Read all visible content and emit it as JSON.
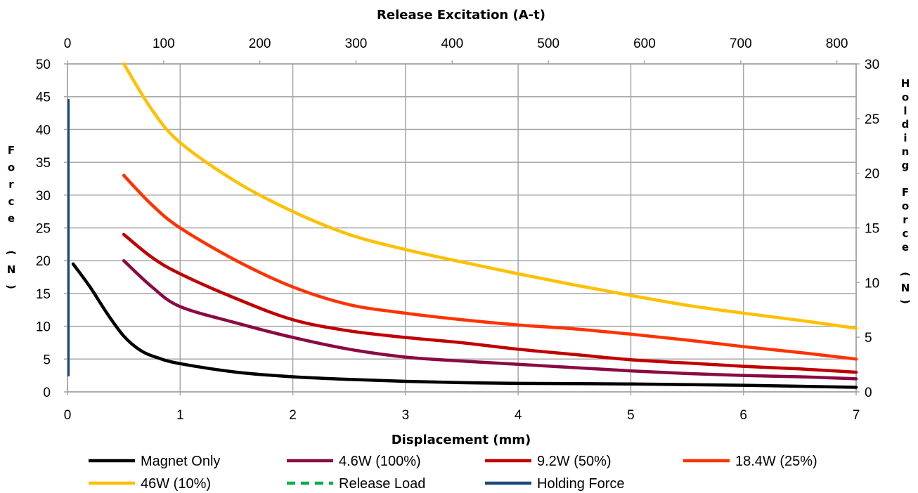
{
  "chart_data": {
    "type": "line",
    "title": "",
    "xlabel": "Displacement (mm)",
    "ylabel": "Force (N)",
    "x2label": "Release Excitation (A-t)",
    "y2label": "Holding Force (N)",
    "xlim": [
      0,
      7
    ],
    "ylim": [
      0,
      50
    ],
    "x2lim": [
      0,
      820
    ],
    "y2lim": [
      0,
      30
    ],
    "x_ticks": [
      0,
      1,
      2,
      3,
      4,
      5,
      6,
      7
    ],
    "y_ticks": [
      0,
      5,
      10,
      15,
      20,
      25,
      30,
      35,
      40,
      45,
      50
    ],
    "x2_ticks": [
      0,
      100,
      200,
      300,
      400,
      500,
      600,
      700,
      800
    ],
    "y2_ticks": [
      0,
      5,
      10,
      15,
      20,
      25,
      30
    ],
    "grid": true,
    "legend_position": "bottom",
    "series": [
      {
        "name": "Magnet Only",
        "color": "#000000",
        "style": "solid",
        "x": [
          0.05,
          0.2,
          0.35,
          0.5,
          0.65,
          0.8,
          1.0,
          1.5,
          2.0,
          2.5,
          3.0,
          3.5,
          4.0,
          5.0,
          6.0,
          7.0
        ],
        "y": [
          19.5,
          16.0,
          12.0,
          8.5,
          6.3,
          5.2,
          4.3,
          3.0,
          2.3,
          1.9,
          1.6,
          1.4,
          1.3,
          1.2,
          1.0,
          0.7
        ]
      },
      {
        "name": "4.6W (100%)",
        "color": "#8b0a43",
        "style": "solid",
        "x": [
          0.5,
          0.75,
          1.0,
          1.5,
          2.0,
          2.5,
          3.0,
          3.5,
          4.0,
          4.5,
          5.0,
          5.5,
          6.0,
          6.5,
          7.0
        ],
        "y": [
          20,
          16,
          13,
          10.5,
          8.3,
          6.5,
          5.3,
          4.7,
          4.2,
          3.7,
          3.2,
          2.8,
          2.5,
          2.3,
          2.0
        ]
      },
      {
        "name": "9.2W (50%)",
        "color": "#c00000",
        "style": "solid",
        "x": [
          0.5,
          0.75,
          1.0,
          1.5,
          2.0,
          2.5,
          3.0,
          3.5,
          4.0,
          4.5,
          5.0,
          5.5,
          6.0,
          6.5,
          7.0
        ],
        "y": [
          24,
          20.5,
          18,
          14.2,
          11,
          9.3,
          8.3,
          7.5,
          6.5,
          5.7,
          4.9,
          4.4,
          3.9,
          3.5,
          3.0
        ]
      },
      {
        "name": "18.4W (25%)",
        "color": "#ff3300",
        "style": "solid",
        "x": [
          0.5,
          0.75,
          1.0,
          1.5,
          2.0,
          2.5,
          3.0,
          3.5,
          4.0,
          4.5,
          5.0,
          5.5,
          6.0,
          6.5,
          7.0
        ],
        "y": [
          33,
          28.5,
          25,
          20,
          16,
          13.3,
          12,
          11,
          10.2,
          9.6,
          8.8,
          7.9,
          6.9,
          6.0,
          5.0
        ]
      },
      {
        "name": "46W (10%)",
        "color": "#ffc000",
        "style": "solid",
        "x": [
          0.5,
          0.75,
          1.0,
          1.5,
          2.0,
          2.5,
          3.0,
          3.5,
          4.0,
          4.5,
          5.0,
          5.5,
          6.0,
          6.5,
          7.0
        ],
        "y": [
          50,
          43,
          38,
          32,
          27.5,
          24,
          21.7,
          19.8,
          18,
          16.3,
          14.7,
          13.2,
          12,
          10.9,
          9.7
        ]
      },
      {
        "name": "Release Load",
        "color": "#00b050",
        "style": "dashed",
        "x": [],
        "y": []
      },
      {
        "name": "Holding Force",
        "color": "#1f497d",
        "style": "solid",
        "x": [
          0.01,
          0.01
        ],
        "y": [
          2.5,
          44.5
        ]
      }
    ]
  }
}
